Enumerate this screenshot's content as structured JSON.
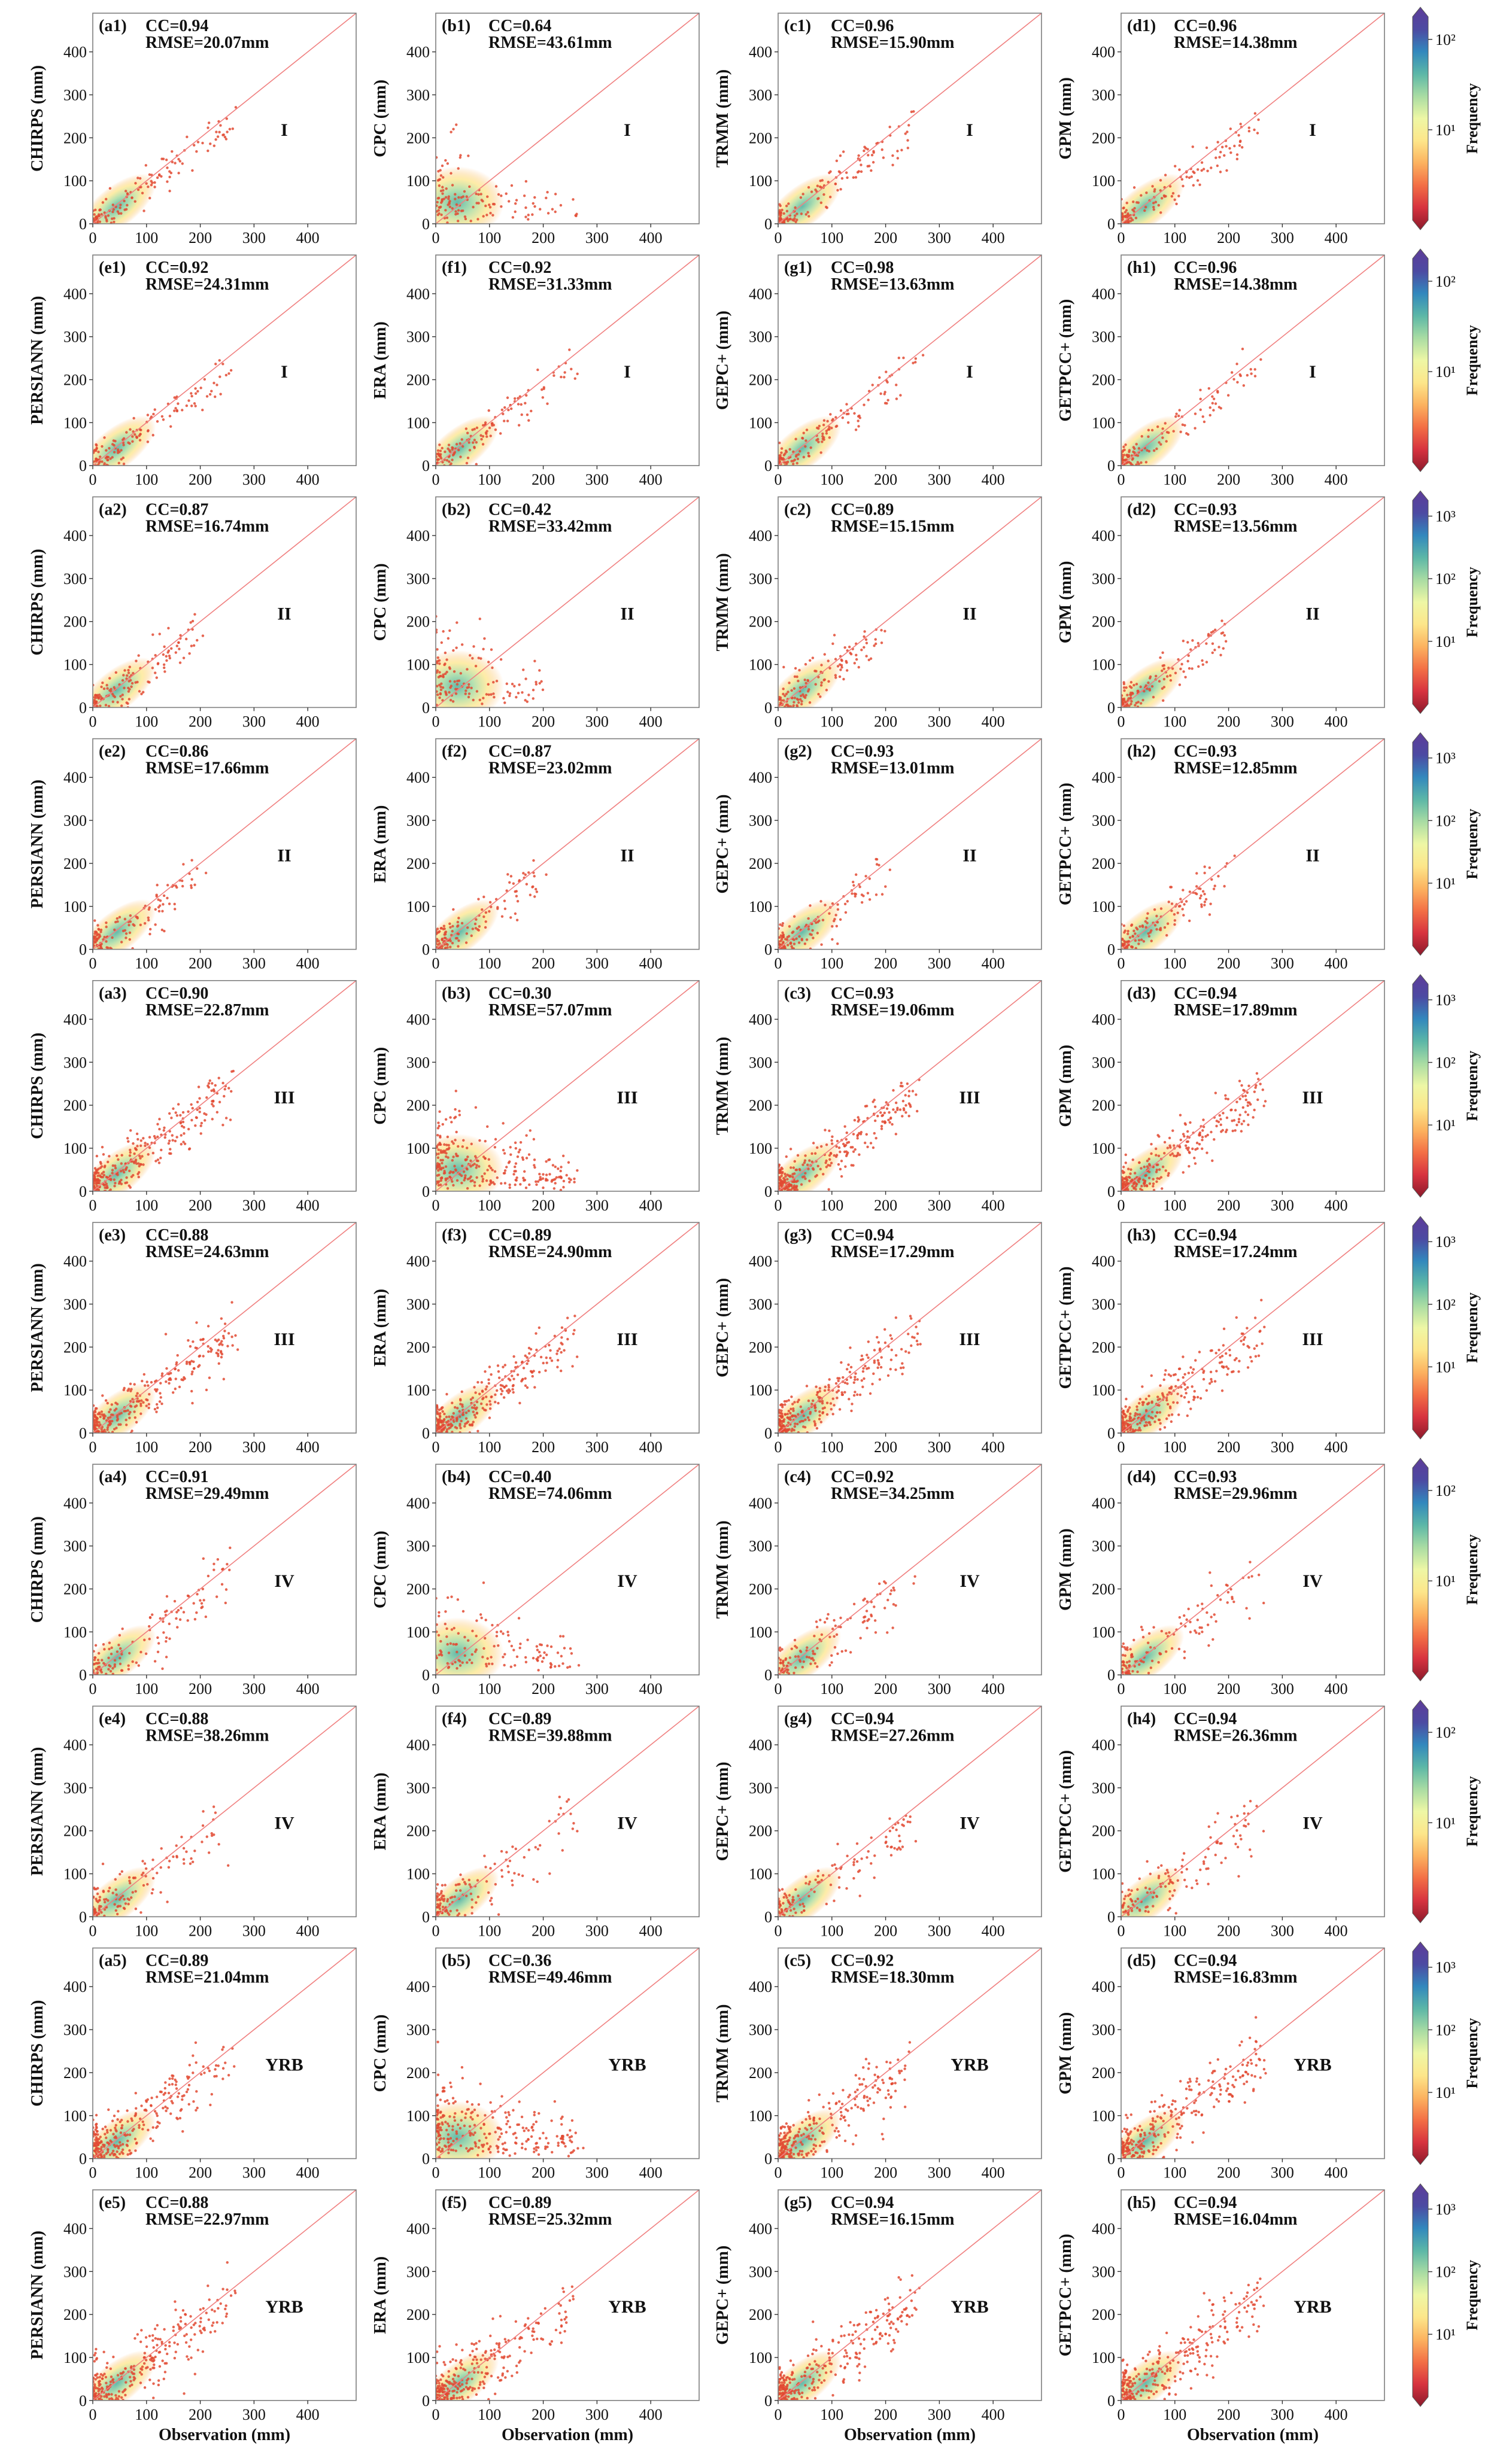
{
  "figure": {
    "xlabel": "Observation (mm)",
    "colorbar_label": "Frequency",
    "colorscale": [
      "#8b1a2b",
      "#d7333f",
      "#f36f45",
      "#fcb25f",
      "#fde68a",
      "#eef7a5",
      "#a9dca3",
      "#5cb7a7",
      "#3288bd",
      "#4c4aa2",
      "#5e3c99"
    ],
    "scatter_color": "#e24a33",
    "line_color": "#f08080",
    "frame_color": "#7f7f7f"
  },
  "chart_data": {
    "type": "scatter",
    "xlim": [
      0,
      490
    ],
    "ylim": [
      0,
      490
    ],
    "ticks": [
      "0",
      "100",
      "200",
      "300",
      "400"
    ],
    "reference_line": "1:1",
    "grid": false,
    "row_groups": [
      {
        "region": "I",
        "colorbar_ticks": [
          "10¹",
          "10²"
        ],
        "rows": [
          [
            {
              "label": "(a1)",
              "ylabel": "CHIRPS (mm)",
              "cc": "CC=0.94",
              "rmse": "RMSE=20.07mm"
            },
            {
              "label": "(b1)",
              "ylabel": "CPC (mm)",
              "cc": "CC=0.64",
              "rmse": "RMSE=43.61mm"
            },
            {
              "label": "(c1)",
              "ylabel": "TRMM (mm)",
              "cc": "CC=0.96",
              "rmse": "RMSE=15.90mm"
            },
            {
              "label": "(d1)",
              "ylabel": "GPM (mm)",
              "cc": "CC=0.96",
              "rmse": "RMSE=14.38mm"
            }
          ],
          [
            {
              "label": "(e1)",
              "ylabel": "PERSIANN (mm)",
              "cc": "CC=0.92",
              "rmse": "RMSE=24.31mm"
            },
            {
              "label": "(f1)",
              "ylabel": "ERA (mm)",
              "cc": "CC=0.92",
              "rmse": "RMSE=31.33mm"
            },
            {
              "label": "(g1)",
              "ylabel": "GEPC+ (mm)",
              "cc": "CC=0.98",
              "rmse": "RMSE=13.63mm"
            },
            {
              "label": "(h1)",
              "ylabel": "GETPCC+ (mm)",
              "cc": "CC=0.96",
              "rmse": "RMSE=14.38mm"
            }
          ]
        ]
      },
      {
        "region": "II",
        "colorbar_ticks": [
          "10¹",
          "10²",
          "10³"
        ],
        "rows": [
          [
            {
              "label": "(a2)",
              "ylabel": "CHIRPS (mm)",
              "cc": "CC=0.87",
              "rmse": "RMSE=16.74mm"
            },
            {
              "label": "(b2)",
              "ylabel": "CPC (mm)",
              "cc": "CC=0.42",
              "rmse": "RMSE=33.42mm"
            },
            {
              "label": "(c2)",
              "ylabel": "TRMM (mm)",
              "cc": "CC=0.89",
              "rmse": "RMSE=15.15mm"
            },
            {
              "label": "(d2)",
              "ylabel": "GPM (mm)",
              "cc": "CC=0.93",
              "rmse": "RMSE=13.56mm"
            }
          ],
          [
            {
              "label": "(e2)",
              "ylabel": "PERSIANN (mm)",
              "cc": "CC=0.86",
              "rmse": "RMSE=17.66mm"
            },
            {
              "label": "(f2)",
              "ylabel": "ERA (mm)",
              "cc": "CC=0.87",
              "rmse": "RMSE=23.02mm"
            },
            {
              "label": "(g2)",
              "ylabel": "GEPC+ (mm)",
              "cc": "CC=0.93",
              "rmse": "RMSE=13.01mm"
            },
            {
              "label": "(h2)",
              "ylabel": "GETPCC+ (mm)",
              "cc": "CC=0.93",
              "rmse": "RMSE=12.85mm"
            }
          ]
        ]
      },
      {
        "region": "III",
        "colorbar_ticks": [
          "10¹",
          "10²",
          "10³"
        ],
        "rows": [
          [
            {
              "label": "(a3)",
              "ylabel": "CHIRPS (mm)",
              "cc": "CC=0.90",
              "rmse": "RMSE=22.87mm"
            },
            {
              "label": "(b3)",
              "ylabel": "CPC (mm)",
              "cc": "CC=0.30",
              "rmse": "RMSE=57.07mm"
            },
            {
              "label": "(c3)",
              "ylabel": "TRMM (mm)",
              "cc": "CC=0.93",
              "rmse": "RMSE=19.06mm"
            },
            {
              "label": "(d3)",
              "ylabel": "GPM (mm)",
              "cc": "CC=0.94",
              "rmse": "RMSE=17.89mm"
            }
          ],
          [
            {
              "label": "(e3)",
              "ylabel": "PERSIANN (mm)",
              "cc": "CC=0.88",
              "rmse": "RMSE=24.63mm"
            },
            {
              "label": "(f3)",
              "ylabel": "ERA (mm)",
              "cc": "CC=0.89",
              "rmse": "RMSE=24.90mm"
            },
            {
              "label": "(g3)",
              "ylabel": "GEPC+ (mm)",
              "cc": "CC=0.94",
              "rmse": "RMSE=17.29mm"
            },
            {
              "label": "(h3)",
              "ylabel": "GETPCC+ (mm)",
              "cc": "CC=0.94",
              "rmse": "RMSE=17.24mm"
            }
          ]
        ]
      },
      {
        "region": "IV",
        "colorbar_ticks": [
          "10¹",
          "10²"
        ],
        "rows": [
          [
            {
              "label": "(a4)",
              "ylabel": "CHIRPS (mm)",
              "cc": "CC=0.91",
              "rmse": "RMSE=29.49mm"
            },
            {
              "label": "(b4)",
              "ylabel": "CPC (mm)",
              "cc": "CC=0.40",
              "rmse": "RMSE=74.06mm"
            },
            {
              "label": "(c4)",
              "ylabel": "TRMM (mm)",
              "cc": "CC=0.92",
              "rmse": "RMSE=34.25mm"
            },
            {
              "label": "(d4)",
              "ylabel": "GPM (mm)",
              "cc": "CC=0.93",
              "rmse": "RMSE=29.96mm"
            }
          ],
          [
            {
              "label": "(e4)",
              "ylabel": "PERSIANN (mm)",
              "cc": "CC=0.88",
              "rmse": "RMSE=38.26mm"
            },
            {
              "label": "(f4)",
              "ylabel": "ERA (mm)",
              "cc": "CC=0.89",
              "rmse": "RMSE=39.88mm"
            },
            {
              "label": "(g4)",
              "ylabel": "GEPC+ (mm)",
              "cc": "CC=0.94",
              "rmse": "RMSE=27.26mm"
            },
            {
              "label": "(h4)",
              "ylabel": "GETPCC+ (mm)",
              "cc": "CC=0.94",
              "rmse": "RMSE=26.36mm"
            }
          ]
        ]
      },
      {
        "region": "YRB",
        "colorbar_ticks": [
          "10¹",
          "10²",
          "10³"
        ],
        "rows": [
          [
            {
              "label": "(a5)",
              "ylabel": "CHIRPS (mm)",
              "cc": "CC=0.89",
              "rmse": "RMSE=21.04mm"
            },
            {
              "label": "(b5)",
              "ylabel": "CPC (mm)",
              "cc": "CC=0.36",
              "rmse": "RMSE=49.46mm"
            },
            {
              "label": "(c5)",
              "ylabel": "TRMM (mm)",
              "cc": "CC=0.92",
              "rmse": "RMSE=18.30mm"
            },
            {
              "label": "(d5)",
              "ylabel": "GPM (mm)",
              "cc": "CC=0.94",
              "rmse": "RMSE=16.83mm"
            }
          ],
          [
            {
              "label": "(e5)",
              "ylabel": "PERSIANN (mm)",
              "cc": "CC=0.88",
              "rmse": "RMSE=22.97mm"
            },
            {
              "label": "(f5)",
              "ylabel": "ERA (mm)",
              "cc": "CC=0.89",
              "rmse": "RMSE=25.32mm"
            },
            {
              "label": "(g5)",
              "ylabel": "GEPC+ (mm)",
              "cc": "CC=0.94",
              "rmse": "RMSE=16.15mm"
            },
            {
              "label": "(h5)",
              "ylabel": "GETPCC+ (mm)",
              "cc": "CC=0.94",
              "rmse": "RMSE=16.04mm"
            }
          ]
        ]
      }
    ]
  }
}
